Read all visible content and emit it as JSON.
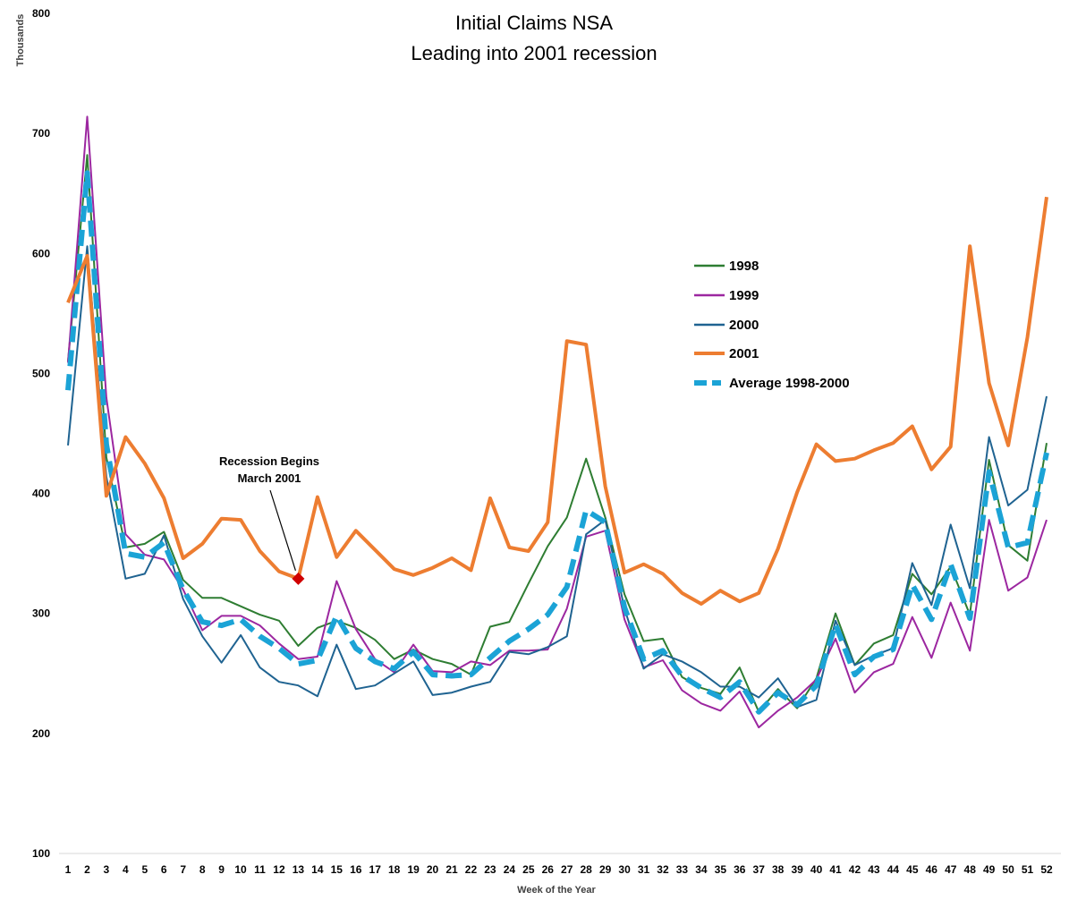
{
  "chart_data": {
    "type": "line",
    "title": "Initial Claims NSA",
    "subtitle": "Leading into 2001 recession",
    "xlabel": "Week of the Year",
    "ylabel": "Thousands",
    "ylim": [
      100,
      800
    ],
    "yticks": [
      100,
      200,
      300,
      400,
      500,
      600,
      700,
      800
    ],
    "grid": false,
    "legend_position": "right",
    "x": [
      1,
      2,
      3,
      4,
      5,
      6,
      7,
      8,
      9,
      10,
      11,
      12,
      13,
      14,
      15,
      16,
      17,
      18,
      19,
      20,
      21,
      22,
      23,
      24,
      25,
      26,
      27,
      28,
      29,
      30,
      31,
      32,
      33,
      34,
      35,
      36,
      37,
      38,
      39,
      40,
      41,
      42,
      43,
      44,
      45,
      46,
      47,
      48,
      49,
      50,
      51,
      52
    ],
    "series": [
      {
        "name": "1998",
        "color": "#2e7d32",
        "style": "solid",
        "values": [
          510,
          682,
          430,
          355,
          358,
          368,
          328,
          313,
          313,
          306,
          299,
          294,
          273,
          288,
          294,
          288,
          278,
          262,
          270,
          262,
          258,
          249,
          289,
          293,
          325,
          356,
          380,
          429,
          380,
          316,
          277,
          279,
          247,
          238,
          233,
          255,
          218,
          237,
          221,
          246,
          300,
          257,
          275,
          282,
          333,
          316,
          339,
          299,
          428,
          357,
          344,
          442
        ]
      },
      {
        "name": "1999",
        "color": "#9c27a0",
        "style": "solid",
        "values": [
          509,
          714,
          480,
          366,
          349,
          345,
          320,
          286,
          298,
          298,
          290,
          275,
          262,
          264,
          327,
          287,
          262,
          251,
          274,
          252,
          251,
          260,
          257,
          269,
          269,
          270,
          304,
          364,
          369,
          295,
          255,
          261,
          236,
          225,
          219,
          235,
          205,
          219,
          230,
          245,
          279,
          234,
          251,
          258,
          297,
          263,
          309,
          269,
          378,
          319,
          330,
          378
        ]
      },
      {
        "name": "2000",
        "color": "#1f6391",
        "style": "solid",
        "values": [
          440,
          606,
          414,
          329,
          333,
          365,
          312,
          281,
          259,
          282,
          255,
          243,
          240,
          231,
          274,
          237,
          240,
          250,
          260,
          232,
          234,
          239,
          243,
          268,
          266,
          272,
          281,
          366,
          378,
          304,
          254,
          266,
          260,
          251,
          239,
          239,
          230,
          246,
          222,
          228,
          294,
          257,
          265,
          271,
          342,
          307,
          374,
          321,
          447,
          390,
          403,
          481
        ]
      },
      {
        "name": "2001",
        "color": "#ed7d31",
        "style": "solid",
        "values": [
          559,
          598,
          398,
          447,
          425,
          396,
          346,
          358,
          379,
          378,
          352,
          335,
          329,
          397,
          347,
          369,
          353,
          337,
          332,
          338,
          346,
          336,
          396,
          355,
          352,
          376,
          527,
          524,
          406,
          334,
          341,
          333,
          317,
          308,
          319,
          310,
          317,
          354,
          401,
          441,
          427,
          429,
          436,
          442,
          456,
          420,
          439,
          606,
          492,
          440,
          530,
          647
        ]
      },
      {
        "name": "Average 1998-2000",
        "color": "#1ba3d6",
        "style": "dashed",
        "values": [
          486,
          667,
          441,
          350,
          347,
          359,
          320,
          293,
          290,
          295,
          281,
          271,
          258,
          261,
          298,
          271,
          260,
          254,
          268,
          249,
          248,
          249,
          263,
          277,
          287,
          299,
          322,
          386,
          376,
          305,
          262,
          269,
          248,
          238,
          230,
          243,
          218,
          234,
          224,
          240,
          291,
          249,
          264,
          270,
          324,
          295,
          341,
          296,
          418,
          355,
          359,
          434
        ]
      }
    ],
    "annotation": {
      "line1": "Recession Begins",
      "line2": "March 2001",
      "x": 13,
      "y": 329,
      "marker_color": "#d00000"
    }
  }
}
